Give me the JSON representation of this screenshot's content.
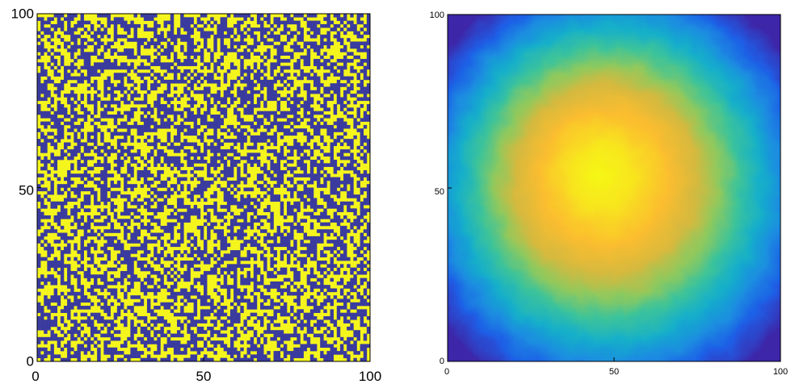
{
  "chart_data": [
    {
      "type": "heatmap",
      "grid_size": [
        100,
        100
      ],
      "pattern": "random binary cell grid",
      "values_set": [
        0,
        1
      ],
      "colors": {
        "0": "#3a3b9e",
        "1": "#f5f51e"
      },
      "xlim": [
        0,
        100
      ],
      "ylim": [
        0,
        100
      ],
      "x_ticks": [
        "0",
        "50",
        "100"
      ],
      "y_ticks": [
        "0",
        "50",
        "100"
      ],
      "xlabel": "",
      "ylabel": "",
      "title": ""
    },
    {
      "type": "heatmap",
      "grid_size": [
        100,
        100
      ],
      "pattern": "radial field, maximum at center (50, 50), decreasing toward edges",
      "peak": [
        50,
        50
      ],
      "colormap": [
        "#3d26a8",
        "#1f5ee6",
        "#1a8ee0",
        "#18b0c8",
        "#3cc39a",
        "#8ec95e",
        "#d6b93e",
        "#fbbd2f",
        "#f8e51e",
        "#f5f814"
      ],
      "xlim": [
        0,
        100
      ],
      "ylim": [
        0,
        100
      ],
      "x_ticks": [
        "0",
        "50",
        "100"
      ],
      "y_ticks": [
        "0",
        "50",
        "100"
      ],
      "xlabel": "",
      "ylabel": "",
      "title": ""
    }
  ]
}
